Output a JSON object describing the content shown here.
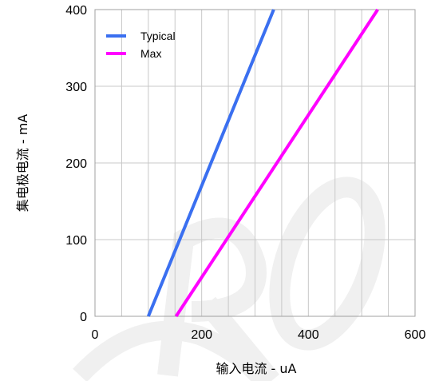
{
  "chart_data": {
    "type": "line",
    "title": "",
    "xlabel": "输入电流 - uA",
    "ylabel": "集电极电流 - mA",
    "xlim": [
      0,
      600
    ],
    "ylim": [
      0,
      400
    ],
    "x_ticks": [
      0,
      200,
      400,
      600
    ],
    "y_ticks": [
      0,
      100,
      200,
      300,
      400
    ],
    "grid": true,
    "legend_position": "top-left",
    "series": [
      {
        "name": "Typical",
        "color": "#3a6ff0",
        "x": [
          100,
          335
        ],
        "y": [
          0,
          400
        ]
      },
      {
        "name": "Max",
        "color": "#ff00ff",
        "x": [
          152,
          530
        ],
        "y": [
          0,
          400
        ]
      }
    ]
  },
  "watermark": {
    "text": "CRO",
    "color": "#f0f0f0"
  }
}
